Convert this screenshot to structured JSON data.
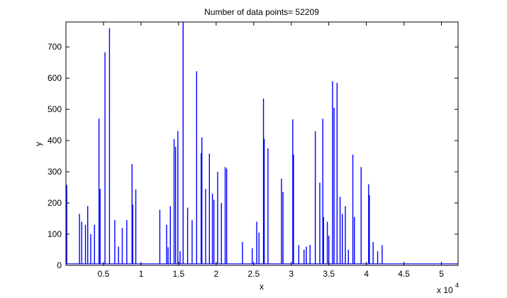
{
  "chart_data": {
    "type": "line",
    "title": "Number of data points= 52209",
    "xlabel": "x",
    "ylabel": "y",
    "x_exponent_label": "x 10",
    "x_exponent_power": "4",
    "xlim": [
      0,
      52209
    ],
    "ylim": [
      0,
      780
    ],
    "x_ticks": [
      5000,
      10000,
      15000,
      20000,
      25000,
      30000,
      35000,
      40000,
      45000,
      50000
    ],
    "x_tick_labels": [
      "0.5",
      "1",
      "1.5",
      "2",
      "2.5",
      "3",
      "3.5",
      "4",
      "4.5",
      "5"
    ],
    "y_ticks": [
      0,
      100,
      200,
      300,
      400,
      500,
      600,
      700
    ],
    "y_tick_labels": [
      "0",
      "100",
      "200",
      "300",
      "400",
      "500",
      "600",
      "700"
    ],
    "grid": false,
    "baseline": 5,
    "series": [
      {
        "color": "#0000ff",
        "spikes": [
          {
            "x": 100,
            "y": 258
          },
          {
            "x": 1800,
            "y": 165
          },
          {
            "x": 2100,
            "y": 140
          },
          {
            "x": 2600,
            "y": 130
          },
          {
            "x": 2900,
            "y": 190
          },
          {
            "x": 3300,
            "y": 100
          },
          {
            "x": 3800,
            "y": 130
          },
          {
            "x": 4400,
            "y": 470
          },
          {
            "x": 4550,
            "y": 245
          },
          {
            "x": 5200,
            "y": 683
          },
          {
            "x": 5800,
            "y": 760
          },
          {
            "x": 6500,
            "y": 145
          },
          {
            "x": 7000,
            "y": 60
          },
          {
            "x": 7500,
            "y": 120
          },
          {
            "x": 8100,
            "y": 145
          },
          {
            "x": 8800,
            "y": 325
          },
          {
            "x": 8900,
            "y": 195
          },
          {
            "x": 9300,
            "y": 243
          },
          {
            "x": 12500,
            "y": 178
          },
          {
            "x": 13400,
            "y": 130
          },
          {
            "x": 13600,
            "y": 58
          },
          {
            "x": 13900,
            "y": 190
          },
          {
            "x": 14400,
            "y": 405
          },
          {
            "x": 14600,
            "y": 380
          },
          {
            "x": 14900,
            "y": 430
          },
          {
            "x": 15200,
            "y": 45
          },
          {
            "x": 15600,
            "y": 780
          },
          {
            "x": 16200,
            "y": 185
          },
          {
            "x": 16800,
            "y": 145
          },
          {
            "x": 17400,
            "y": 622
          },
          {
            "x": 18000,
            "y": 360
          },
          {
            "x": 18100,
            "y": 410
          },
          {
            "x": 18600,
            "y": 245
          },
          {
            "x": 19100,
            "y": 358
          },
          {
            "x": 19500,
            "y": 230
          },
          {
            "x": 19700,
            "y": 210
          },
          {
            "x": 20200,
            "y": 300
          },
          {
            "x": 20700,
            "y": 200
          },
          {
            "x": 21200,
            "y": 315
          },
          {
            "x": 21400,
            "y": 310
          },
          {
            "x": 23500,
            "y": 75
          },
          {
            "x": 24800,
            "y": 55
          },
          {
            "x": 25400,
            "y": 140
          },
          {
            "x": 25700,
            "y": 105
          },
          {
            "x": 26300,
            "y": 535
          },
          {
            "x": 26400,
            "y": 405
          },
          {
            "x": 26900,
            "y": 375
          },
          {
            "x": 28700,
            "y": 278
          },
          {
            "x": 28900,
            "y": 235
          },
          {
            "x": 30200,
            "y": 468
          },
          {
            "x": 30300,
            "y": 355
          },
          {
            "x": 31000,
            "y": 65
          },
          {
            "x": 31700,
            "y": 50
          },
          {
            "x": 32000,
            "y": 60
          },
          {
            "x": 32500,
            "y": 65
          },
          {
            "x": 33200,
            "y": 430
          },
          {
            "x": 33800,
            "y": 265
          },
          {
            "x": 34200,
            "y": 470
          },
          {
            "x": 34300,
            "y": 155
          },
          {
            "x": 34800,
            "y": 140
          },
          {
            "x": 35000,
            "y": 95
          },
          {
            "x": 35500,
            "y": 590
          },
          {
            "x": 35700,
            "y": 505
          },
          {
            "x": 36100,
            "y": 585
          },
          {
            "x": 36500,
            "y": 220
          },
          {
            "x": 36800,
            "y": 165
          },
          {
            "x": 37200,
            "y": 190
          },
          {
            "x": 37600,
            "y": 50
          },
          {
            "x": 38200,
            "y": 355
          },
          {
            "x": 38400,
            "y": 155
          },
          {
            "x": 39300,
            "y": 315
          },
          {
            "x": 40300,
            "y": 260
          },
          {
            "x": 40400,
            "y": 225
          },
          {
            "x": 40900,
            "y": 75
          },
          {
            "x": 41500,
            "y": 45
          },
          {
            "x": 42100,
            "y": 65
          }
        ]
      }
    ]
  }
}
